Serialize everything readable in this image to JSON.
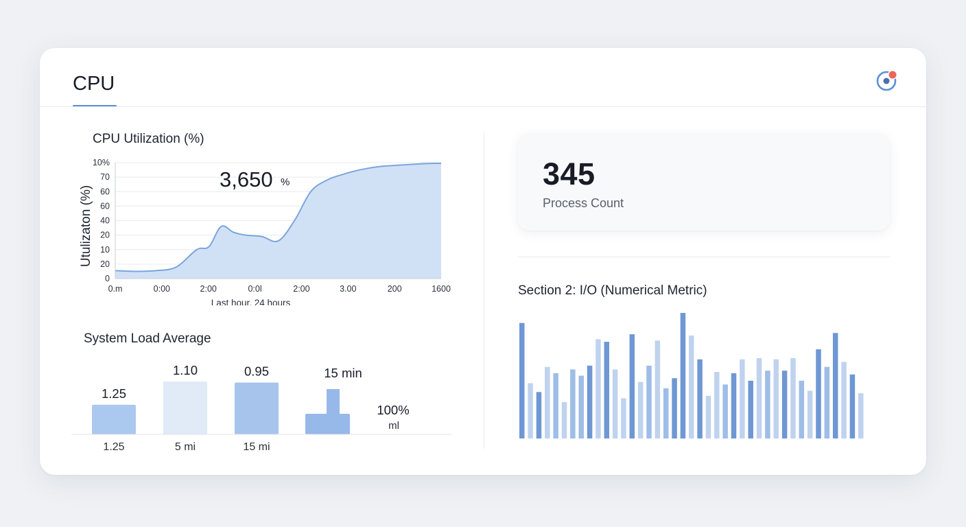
{
  "header": {
    "title": "CPU"
  },
  "status_icon": {
    "name": "status-icon",
    "accent": "#5b8fd6",
    "alert": "#e8685b"
  },
  "colors": {
    "accent": "#5b8fd6",
    "line": "#7aa5dc",
    "fill": "#cfdff4"
  },
  "chart_data": [
    {
      "type": "area",
      "title": "CPU Utilization (%)",
      "ylabel": "Utulizaton (%)",
      "xlabel": "Last hour, 24 hours",
      "y_tick_labels": [
        "0",
        "20",
        "10",
        "20",
        "40",
        "60",
        "60",
        "70",
        "10%"
      ],
      "x_tick_labels": [
        "0.m",
        "0:00",
        "2:00",
        "0:0l",
        "2:00",
        "3.00",
        "200",
        "1600"
      ],
      "annotation": {
        "value": "3,650",
        "unit": "%"
      },
      "ylim": [
        0,
        80
      ],
      "grid": true,
      "x": [
        0,
        0.5,
        1,
        1.5,
        2,
        2.3,
        2.6,
        2.9,
        3.2,
        3.6,
        4.0,
        4.4,
        4.8,
        5.2,
        5.6,
        6.0,
        6.4,
        6.8,
        7.1,
        7.4,
        7.8,
        8.0
      ],
      "values": [
        5.5,
        5,
        5.5,
        8,
        20,
        22,
        36,
        32,
        30,
        29,
        26,
        40,
        60,
        68,
        72,
        75,
        77,
        78,
        78.5,
        79,
        79.5,
        79.5
      ],
      "xlim": [
        0,
        8
      ]
    },
    {
      "type": "bar",
      "title": "System Load Average",
      "categories": [
        "1.25",
        "5 mi",
        "15 mi"
      ],
      "values": [
        1.25,
        1.1,
        0.95
      ],
      "value_labels": [
        "1.25",
        "1.10",
        "0.95"
      ],
      "bar_colors": [
        "#abc8ee",
        "#e1eaf7",
        "#a6c4ec"
      ],
      "extra": {
        "label": "15 min",
        "value": 15,
        "percent_label": "100%",
        "unit_label": "ml"
      }
    },
    {
      "type": "bar",
      "title": "Section 2: I/O (Numerical Metric)",
      "values": [
        92,
        44,
        37,
        57,
        52,
        29,
        55,
        50,
        58,
        79,
        77,
        55,
        32,
        83,
        45,
        58,
        78,
        40,
        48,
        100,
        82,
        63,
        34,
        53,
        43,
        52,
        63,
        46,
        64,
        54,
        63,
        54,
        64,
        46,
        38,
        71,
        57,
        84,
        61,
        51,
        36
      ],
      "color_strength": [
        2,
        0,
        2,
        0,
        1,
        0,
        1,
        1,
        2,
        0,
        2,
        0,
        0,
        2,
        0,
        1,
        0,
        1,
        2,
        2,
        0,
        2,
        0,
        0,
        1,
        2,
        0,
        2,
        0,
        1,
        0,
        2,
        0,
        1,
        0,
        2,
        1,
        2,
        0,
        2,
        0
      ],
      "ylim": [
        0,
        100
      ]
    }
  ],
  "kpi": {
    "value": "345",
    "label": "Process Count"
  }
}
